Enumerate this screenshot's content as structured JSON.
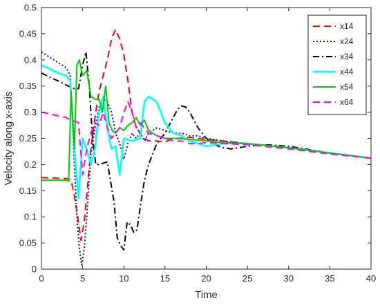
{
  "chart_data": {
    "type": "line",
    "xlabel": "Time",
    "ylabel": "Velocity along x-axis",
    "xlim": [
      0,
      40
    ],
    "ylim": [
      0,
      0.5
    ],
    "xticks": [
      0,
      5,
      10,
      15,
      20,
      25,
      30,
      35,
      40
    ],
    "xtick_labels": [
      "0",
      "5",
      "10",
      "15",
      "20",
      "25",
      "30",
      "35",
      "40"
    ],
    "yticks": [
      0,
      0.05,
      0.1,
      0.15,
      0.2,
      0.25,
      0.3,
      0.35,
      0.4,
      0.45,
      0.5
    ],
    "ytick_labels": [
      "0",
      "0.05",
      "0.1",
      "0.15",
      "0.2",
      "0.25",
      "0.3",
      "0.35",
      "0.4",
      "0.45",
      "0.5"
    ],
    "grid": false,
    "legend_position": "top-right",
    "series": [
      {
        "name": "x14",
        "color": "#ff0000",
        "dash": "dashed",
        "x": [
          0,
          3.2,
          3.6,
          4.0,
          4.4,
          4.8,
          5.2,
          5.6,
          6.0,
          6.5,
          7.0,
          7.5,
          8.0,
          8.5,
          9.0,
          9.5,
          10.0,
          10.5,
          11.0,
          11.5,
          12.0,
          12.5,
          13.0,
          14.0,
          15.0,
          16.0,
          17.0,
          18.0,
          19.0,
          20.0,
          22.0,
          25.0,
          28.0,
          30.0,
          35.0,
          40.0
        ],
        "y": [
          0.175,
          0.173,
          0.17,
          0.14,
          0.1,
          0.055,
          0.09,
          0.16,
          0.23,
          0.29,
          0.34,
          0.37,
          0.4,
          0.44,
          0.458,
          0.44,
          0.41,
          0.36,
          0.3,
          0.27,
          0.26,
          0.25,
          0.245,
          0.245,
          0.243,
          0.25,
          0.25,
          0.252,
          0.25,
          0.248,
          0.245,
          0.24,
          0.236,
          0.232,
          0.222,
          0.212
        ]
      },
      {
        "name": "x24",
        "color": "#0000cc",
        "dash": "dotted",
        "x": [
          0,
          1.0,
          2.0,
          3.0,
          3.5,
          4.0,
          4.3,
          4.6,
          4.9,
          5.2,
          5.5,
          6.0,
          6.5,
          7.0,
          7.5,
          8.0,
          8.5,
          9.0,
          9.5,
          10.0,
          10.5,
          11.0,
          11.5,
          12.0,
          12.5,
          13.0,
          14.0,
          15.0,
          16.0,
          17.0,
          18.0,
          19.0,
          20.0,
          22.0,
          25.0,
          30.0,
          35.0,
          40.0
        ],
        "y": [
          0.415,
          0.405,
          0.395,
          0.385,
          0.37,
          0.2,
          0.1,
          0.04,
          0.008,
          0.04,
          0.1,
          0.22,
          0.27,
          0.31,
          0.325,
          0.32,
          0.3,
          0.26,
          0.24,
          0.21,
          0.24,
          0.26,
          0.25,
          0.26,
          0.245,
          0.26,
          0.27,
          0.265,
          0.26,
          0.26,
          0.255,
          0.255,
          0.25,
          0.245,
          0.24,
          0.232,
          0.222,
          0.212
        ]
      },
      {
        "name": "x34",
        "color": "#000000",
        "dash": "dashdot",
        "x": [
          0,
          1.0,
          2.0,
          3.0,
          4.0,
          4.5,
          5.0,
          5.4,
          5.8,
          6.2,
          6.6,
          7.0,
          8.0,
          8.8,
          9.2,
          9.6,
          10.0,
          10.4,
          10.8,
          11.2,
          11.6,
          12.0,
          12.5,
          13.0,
          13.5,
          14.0,
          15.0,
          16.0,
          16.5,
          17.0,
          17.5,
          18.0,
          18.5,
          19.0,
          20.0,
          21.0,
          22.0,
          23.0,
          24.0,
          25.0,
          27.0,
          30.0,
          35.0,
          40.0
        ],
        "y": [
          0.375,
          0.367,
          0.36,
          0.352,
          0.345,
          0.345,
          0.39,
          0.415,
          0.35,
          0.25,
          0.2,
          0.2,
          0.205,
          0.13,
          0.06,
          0.045,
          0.037,
          0.09,
          0.085,
          0.07,
          0.075,
          0.12,
          0.17,
          0.2,
          0.22,
          0.24,
          0.26,
          0.29,
          0.305,
          0.312,
          0.31,
          0.3,
          0.285,
          0.27,
          0.25,
          0.238,
          0.232,
          0.23,
          0.232,
          0.235,
          0.238,
          0.235,
          0.222,
          0.212
        ]
      },
      {
        "name": "x44",
        "color": "#00ffff",
        "dash": "solid",
        "x": [
          0,
          1.0,
          2.0,
          3.0,
          3.5,
          4.0,
          4.5,
          5.0,
          5.5,
          6.0,
          6.5,
          7.0,
          7.5,
          8.0,
          8.5,
          9.0,
          9.5,
          10.0,
          11.0,
          12.0,
          12.5,
          13.0,
          13.5,
          14.0,
          15.0,
          16.0,
          17.0,
          18.0,
          19.0,
          20.0,
          22.0,
          25.0,
          28.0,
          30.0,
          35.0,
          40.0
        ],
        "y": [
          0.39,
          0.383,
          0.375,
          0.37,
          0.36,
          0.23,
          0.135,
          0.25,
          0.23,
          0.2,
          0.23,
          0.3,
          0.33,
          0.27,
          0.23,
          0.235,
          0.18,
          0.25,
          0.245,
          0.25,
          0.32,
          0.33,
          0.325,
          0.32,
          0.28,
          0.26,
          0.255,
          0.245,
          0.24,
          0.235,
          0.24,
          0.24,
          0.235,
          0.232,
          0.222,
          0.212
        ]
      },
      {
        "name": "x54",
        "color": "#00cc00",
        "dash": "solid",
        "x": [
          0,
          1.0,
          2.0,
          3.0,
          3.3,
          3.6,
          4.0,
          4.3,
          4.6,
          5.0,
          5.5,
          6.0,
          6.5,
          7.0,
          7.4,
          7.8,
          8.2,
          8.6,
          9.0,
          9.5,
          10.0,
          10.5,
          11.0,
          11.5,
          12.0,
          12.5,
          13.0,
          14.0,
          15.0,
          16.0,
          18.0,
          20.0,
          22.0,
          25.0,
          30.0,
          35.0,
          40.0
        ],
        "y": [
          0.17,
          0.17,
          0.17,
          0.17,
          0.168,
          0.34,
          0.23,
          0.39,
          0.4,
          0.37,
          0.38,
          0.33,
          0.325,
          0.325,
          0.3,
          0.35,
          0.28,
          0.265,
          0.26,
          0.27,
          0.265,
          0.275,
          0.28,
          0.29,
          0.275,
          0.285,
          0.265,
          0.255,
          0.25,
          0.25,
          0.248,
          0.245,
          0.242,
          0.24,
          0.232,
          0.222,
          0.212
        ]
      },
      {
        "name": "x64",
        "color": "#ff00ff",
        "dash": "dashed",
        "x": [
          0,
          1.0,
          2.0,
          3.0,
          3.6,
          4.0,
          4.5,
          5.0,
          5.5,
          6.0,
          6.5,
          7.0,
          7.5,
          8.0,
          8.5,
          9.0,
          9.5,
          10.0,
          10.5,
          11.0,
          11.5,
          12.0,
          13.0,
          14.0,
          15.0,
          16.0,
          17.0,
          18.0,
          19.0,
          20.0,
          22.0,
          25.0,
          30.0,
          35.0,
          40.0
        ],
        "y": [
          0.3,
          0.297,
          0.293,
          0.29,
          0.285,
          0.283,
          0.28,
          0.18,
          0.23,
          0.26,
          0.28,
          0.275,
          0.3,
          0.27,
          0.25,
          0.26,
          0.27,
          0.3,
          0.32,
          0.3,
          0.27,
          0.28,
          0.26,
          0.255,
          0.25,
          0.245,
          0.245,
          0.24,
          0.24,
          0.242,
          0.24,
          0.238,
          0.23,
          0.22,
          0.212
        ]
      }
    ]
  }
}
